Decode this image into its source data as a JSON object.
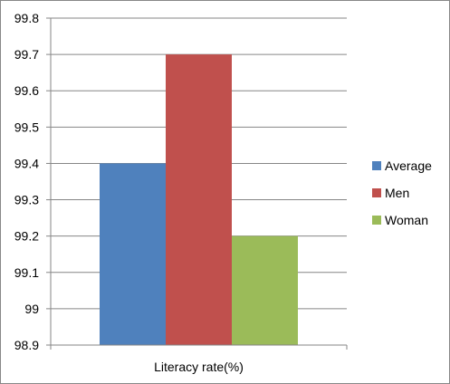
{
  "chart_data": {
    "type": "bar",
    "categories": [
      "Literacy rate(%)"
    ],
    "series": [
      {
        "name": "Average",
        "values": [
          99.4
        ],
        "color": "#4F81BD"
      },
      {
        "name": "Men",
        "values": [
          99.7
        ],
        "color": "#C0504D"
      },
      {
        "name": "Woman",
        "values": [
          99.2
        ],
        "color": "#9BBB59"
      }
    ],
    "title": "",
    "xlabel": "",
    "ylabel": "",
    "ylim": [
      98.9,
      99.8
    ],
    "yticks": [
      "98.9",
      "99",
      "99.1",
      "99.2",
      "99.3",
      "99.4",
      "99.5",
      "99.6",
      "99.7",
      "99.8"
    ],
    "grid": true,
    "legend_position": "right"
  }
}
